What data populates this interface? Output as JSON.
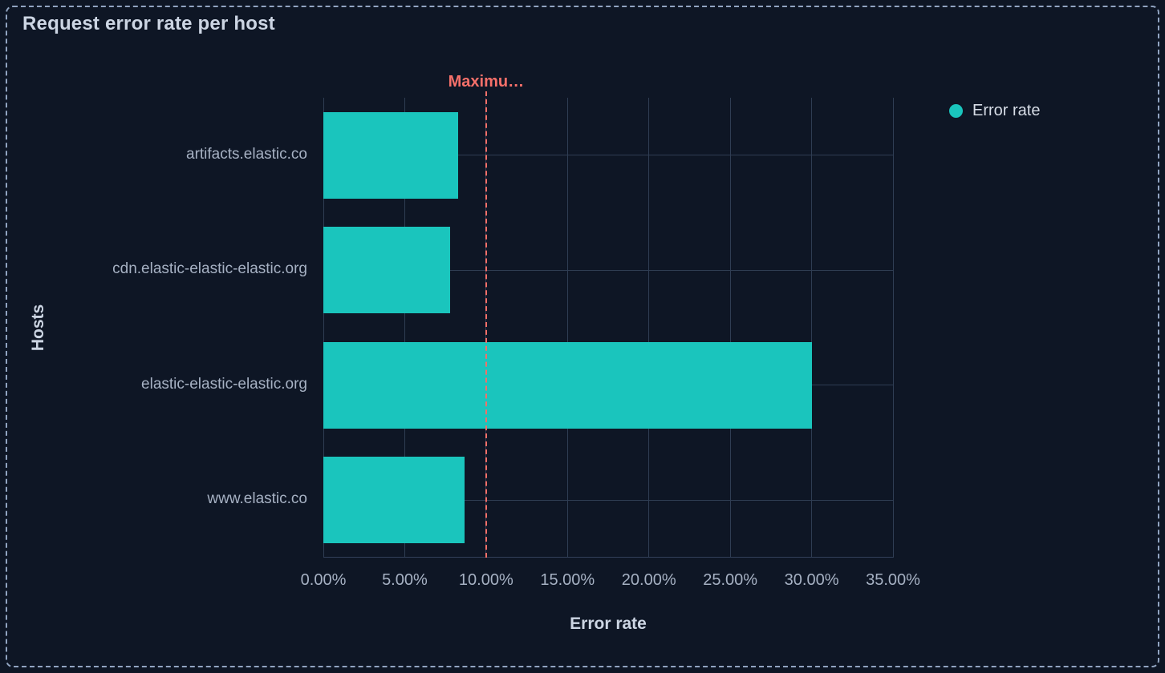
{
  "panel": {
    "title": "Request error rate per host",
    "colors": {
      "background": "#0e1625",
      "border": "#91a4c1",
      "grid": "#2f3d53",
      "axis_text": "#a6b1c3",
      "title_text": "#ccd5e3",
      "bar": "#1ac5bd",
      "threshold": "#f6706a"
    }
  },
  "chart_data": {
    "type": "bar",
    "orientation": "horizontal",
    "title": "Request error rate per host",
    "categories": [
      "artifacts.elastic.co",
      "cdn.elastic-elastic-elastic.org",
      "elastic-elastic-elastic.org",
      "www.elastic.co"
    ],
    "series": [
      {
        "name": "Error rate",
        "color": "#1ac5bd",
        "values": [
          8.3,
          7.8,
          30,
          8.7
        ]
      }
    ],
    "value_unit": "%",
    "xlabel": "Error rate",
    "ylabel": "Hosts",
    "xlim": [
      0,
      35
    ],
    "xticks": [
      0,
      5,
      10,
      15,
      20,
      25,
      30,
      35
    ],
    "xtick_labels": [
      "0.00%",
      "5.00%",
      "10.00%",
      "15.00%",
      "20.00%",
      "25.00%",
      "30.00%",
      "35.00%"
    ],
    "grid": true,
    "legend": {
      "position": "top-right",
      "items": [
        {
          "label": "Error rate",
          "color": "#1ac5bd",
          "marker": "dot"
        }
      ]
    },
    "annotations": [
      {
        "type": "vline",
        "value": 10,
        "label": "Maximu…",
        "color": "#f6706a",
        "line_style": "dashed"
      }
    ]
  }
}
